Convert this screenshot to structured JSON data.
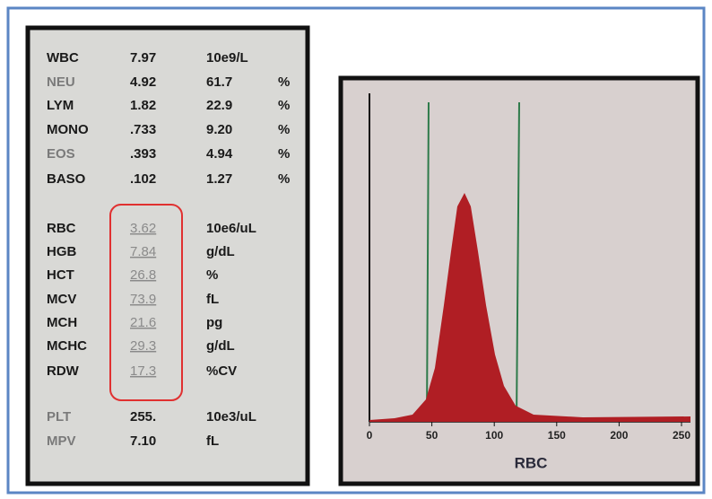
{
  "report": {
    "rows": [
      [
        "WBC",
        "7.97",
        "10e9/L",
        ""
      ],
      [
        "NEU",
        "4.92",
        "61.7",
        "%"
      ],
      [
        "LYM",
        "1.82",
        "22.9",
        "%"
      ],
      [
        "MONO",
        ".733",
        "9.20",
        "%"
      ],
      [
        "EOS",
        ".393",
        "4.94",
        "%"
      ],
      [
        "BASO",
        ".102",
        "1.27",
        "%"
      ],
      [
        "RBC",
        "3.62",
        "10e6/uL",
        ""
      ],
      [
        "HGB",
        "7.84",
        "g/dL",
        ""
      ],
      [
        "HCT",
        "26.8",
        "%",
        ""
      ],
      [
        "MCV",
        "73.9",
        "fL",
        ""
      ],
      [
        "MCH",
        "21.6",
        "pg",
        ""
      ],
      [
        "MCHC",
        "29.3",
        "g/dL",
        ""
      ],
      [
        "RDW",
        "17.3",
        "%CV",
        ""
      ],
      [
        "PLT",
        "255.",
        "10e3/uL",
        ""
      ],
      [
        "MPV",
        "7.10",
        "fL",
        ""
      ]
    ]
  },
  "histogram": {
    "xlabel": "RBC",
    "xlim": [
      0,
      250
    ],
    "xticks": [
      0,
      50,
      100,
      150,
      200,
      250
    ]
  }
}
